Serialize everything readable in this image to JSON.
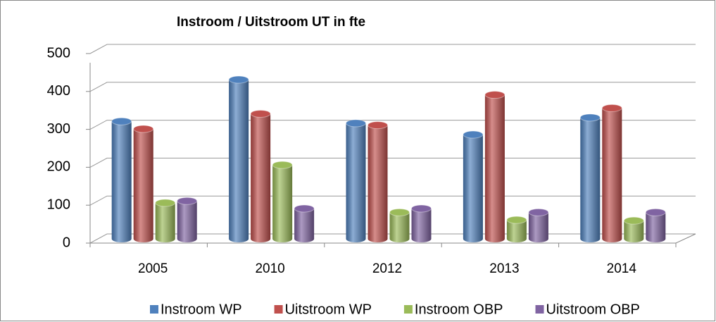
{
  "chart_data": {
    "type": "bar",
    "title": "Instroom / Uitstroom UT in fte",
    "categories": [
      "2005",
      "2010",
      "2012",
      "2013",
      "2014"
    ],
    "series": [
      {
        "name": "Instroom WP",
        "color": "#4f81bd",
        "values": [
          310,
          420,
          305,
          275,
          320
        ]
      },
      {
        "name": "Uitstroom WP",
        "color": "#c0504d",
        "values": [
          290,
          330,
          300,
          380,
          345
        ]
      },
      {
        "name": "Instroom OBP",
        "color": "#9bbb59",
        "values": [
          95,
          195,
          70,
          50,
          48
        ]
      },
      {
        "name": "Uitstroom OBP",
        "color": "#8064a2",
        "values": [
          100,
          80,
          80,
          70,
          70
        ]
      }
    ],
    "ylim": [
      0,
      500
    ],
    "yticks": [
      0,
      100,
      200,
      300,
      400,
      500
    ],
    "grid": true,
    "legend": "bottom"
  }
}
